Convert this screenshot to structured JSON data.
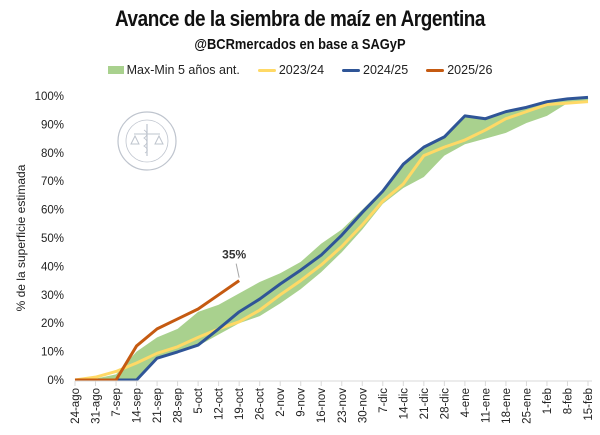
{
  "chart_data": {
    "type": "line",
    "title": "Avance de la siembra de maíz en Argentina",
    "subtitle": "@BCRmercados en base a SAGyP",
    "xlabel": "",
    "ylabel": "% de la superficie estimada",
    "ylim": [
      0,
      100
    ],
    "yticks": [
      "0%",
      "10%",
      "20%",
      "30%",
      "40%",
      "50%",
      "60%",
      "70%",
      "80%",
      "90%",
      "100%"
    ],
    "grid": false,
    "legend_position": "top",
    "categories": [
      "24-ago",
      "31-ago",
      "7-sep",
      "14-sep",
      "21-sep",
      "28-sep",
      "5-oct",
      "12-oct",
      "19-oct",
      "26-oct",
      "2-nov",
      "9-nov",
      "16-nov",
      "23-nov",
      "30-nov",
      "7-dic",
      "14-dic",
      "21-dic",
      "28-dic",
      "4-ene",
      "11-ene",
      "18-ene",
      "25-ene",
      "1-feb",
      "8-feb",
      "15-feb"
    ],
    "band": {
      "name": "Max-Min 5 años ant.",
      "color": "#a9d18e",
      "max": [
        0,
        0.5,
        2,
        10,
        15,
        18,
        24,
        26.5,
        30.5,
        34.5,
        37.6,
        41.6,
        48,
        53,
        60,
        67,
        76,
        82,
        86,
        93,
        92,
        94.5,
        96,
        98,
        99,
        99
      ],
      "min": [
        0,
        0,
        0,
        0.5,
        8,
        10,
        12,
        16,
        20,
        22.5,
        27,
        32,
        38,
        45,
        53,
        62,
        67.6,
        71.5,
        79,
        83,
        85,
        87,
        90.5,
        93,
        97.5,
        98
      ]
    },
    "series": [
      {
        "name": "2023/24",
        "color": "#ffd966",
        "values": [
          0,
          1,
          3,
          6,
          9.4,
          11.7,
          15,
          18,
          20.5,
          24.6,
          30,
          35,
          40.5,
          47,
          54.6,
          63,
          69,
          79,
          82,
          84.5,
          88,
          92,
          94.5,
          97,
          97.5,
          98
        ]
      },
      {
        "name": "2024/25",
        "color": "#2f5597",
        "values": [
          0,
          0,
          0,
          0,
          7.7,
          9.9,
          12.3,
          18,
          24,
          28.5,
          33.8,
          38.7,
          44,
          51,
          59,
          66.5,
          76,
          82,
          85.6,
          93,
          92,
          94.5,
          96,
          98,
          99,
          99.5
        ]
      },
      {
        "name": "2025/26",
        "color": "#c55a11",
        "values": [
          0,
          0,
          0,
          12,
          18,
          21.5,
          25,
          30,
          35
        ]
      }
    ],
    "annotations": [
      {
        "text": "35%",
        "category": "19-oct",
        "series": "2025/26",
        "value": 35
      }
    ]
  },
  "watermark": {
    "text": "BOLSA DE COMERCIO DE ROSARIO"
  }
}
